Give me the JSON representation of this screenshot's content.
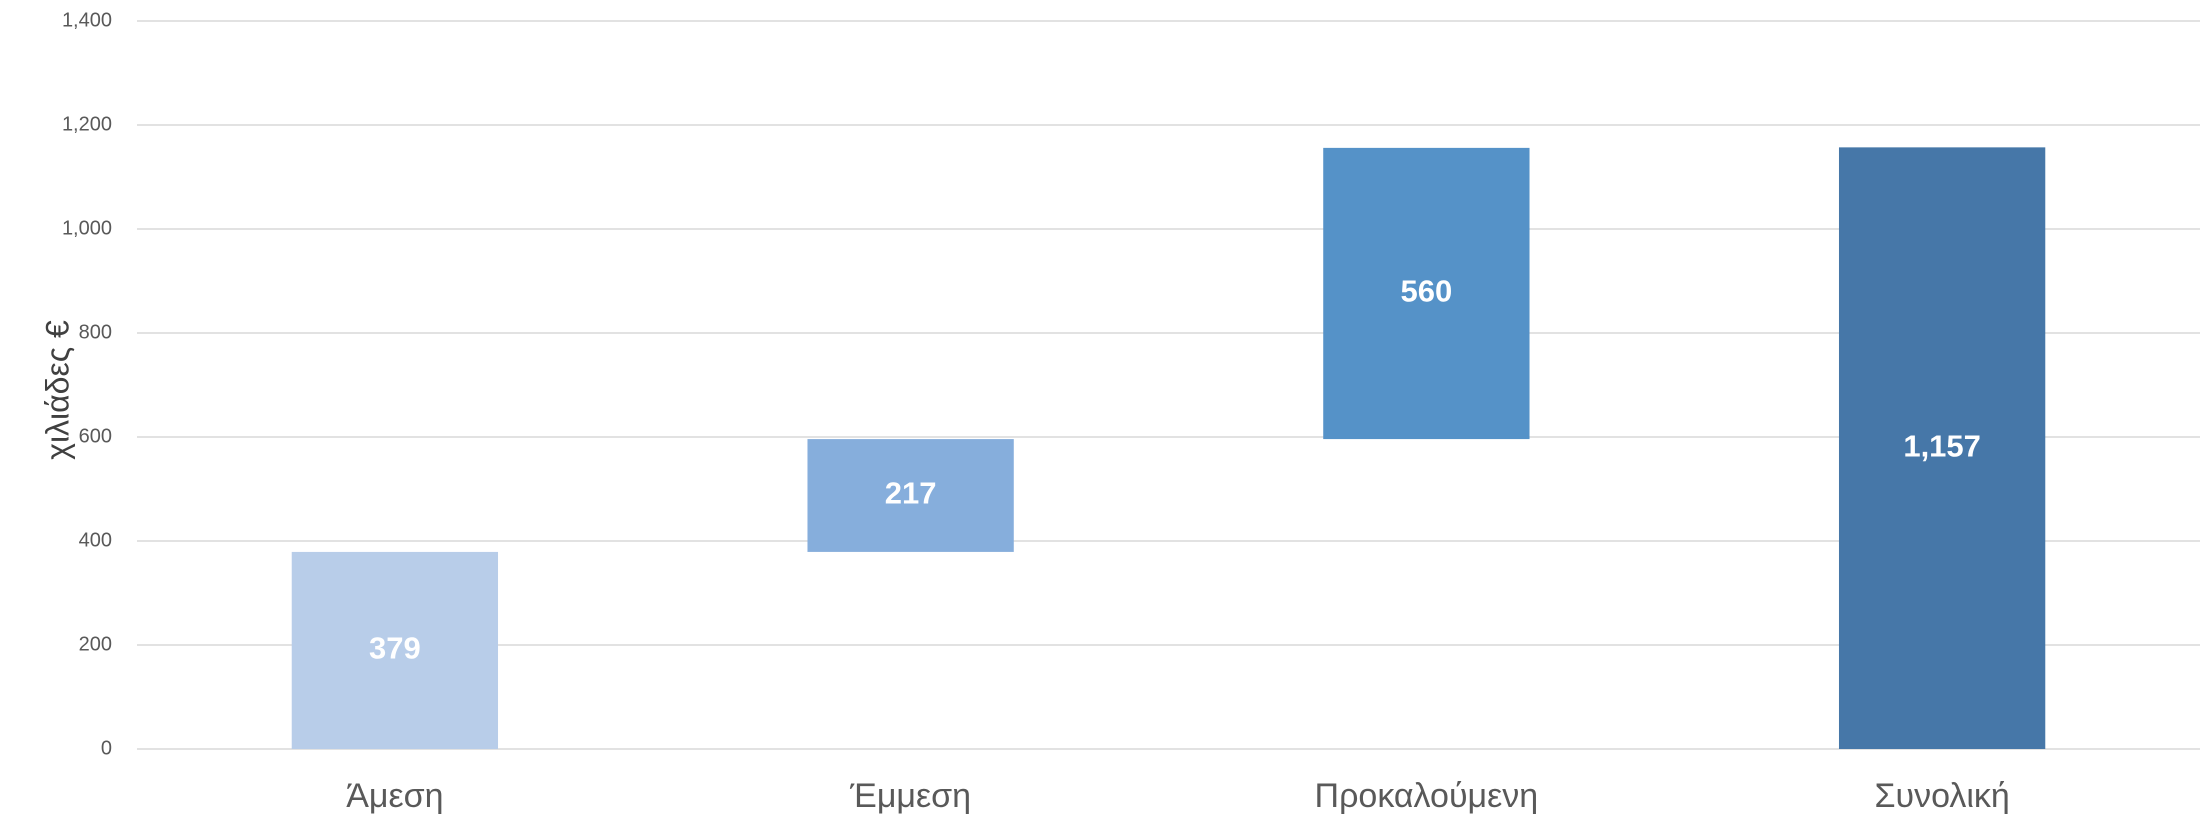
{
  "chart_data": {
    "type": "waterfall",
    "y_label": "χιλιάδες €",
    "categories": [
      "Άμεση",
      "Έμμεση",
      "Προκαλούμενη",
      "Συνολική"
    ],
    "values": [
      379,
      217,
      560,
      1157
    ],
    "value_labels": [
      "379",
      "217",
      "560",
      "1,157"
    ],
    "total": [
      false,
      false,
      false,
      true
    ],
    "colors": [
      "#b8cde9",
      "#86aedc",
      "#5592c8",
      "#4677a8"
    ],
    "ylim": [
      0,
      1400
    ],
    "yticks": [
      0,
      200,
      400,
      600,
      800,
      {
        "value": 1000,
        "label": "1,000"
      },
      {
        "value": 1200,
        "label": "1,200"
      },
      {
        "value": 1400,
        "label": "1,400"
      }
    ],
    "grid": true
  }
}
